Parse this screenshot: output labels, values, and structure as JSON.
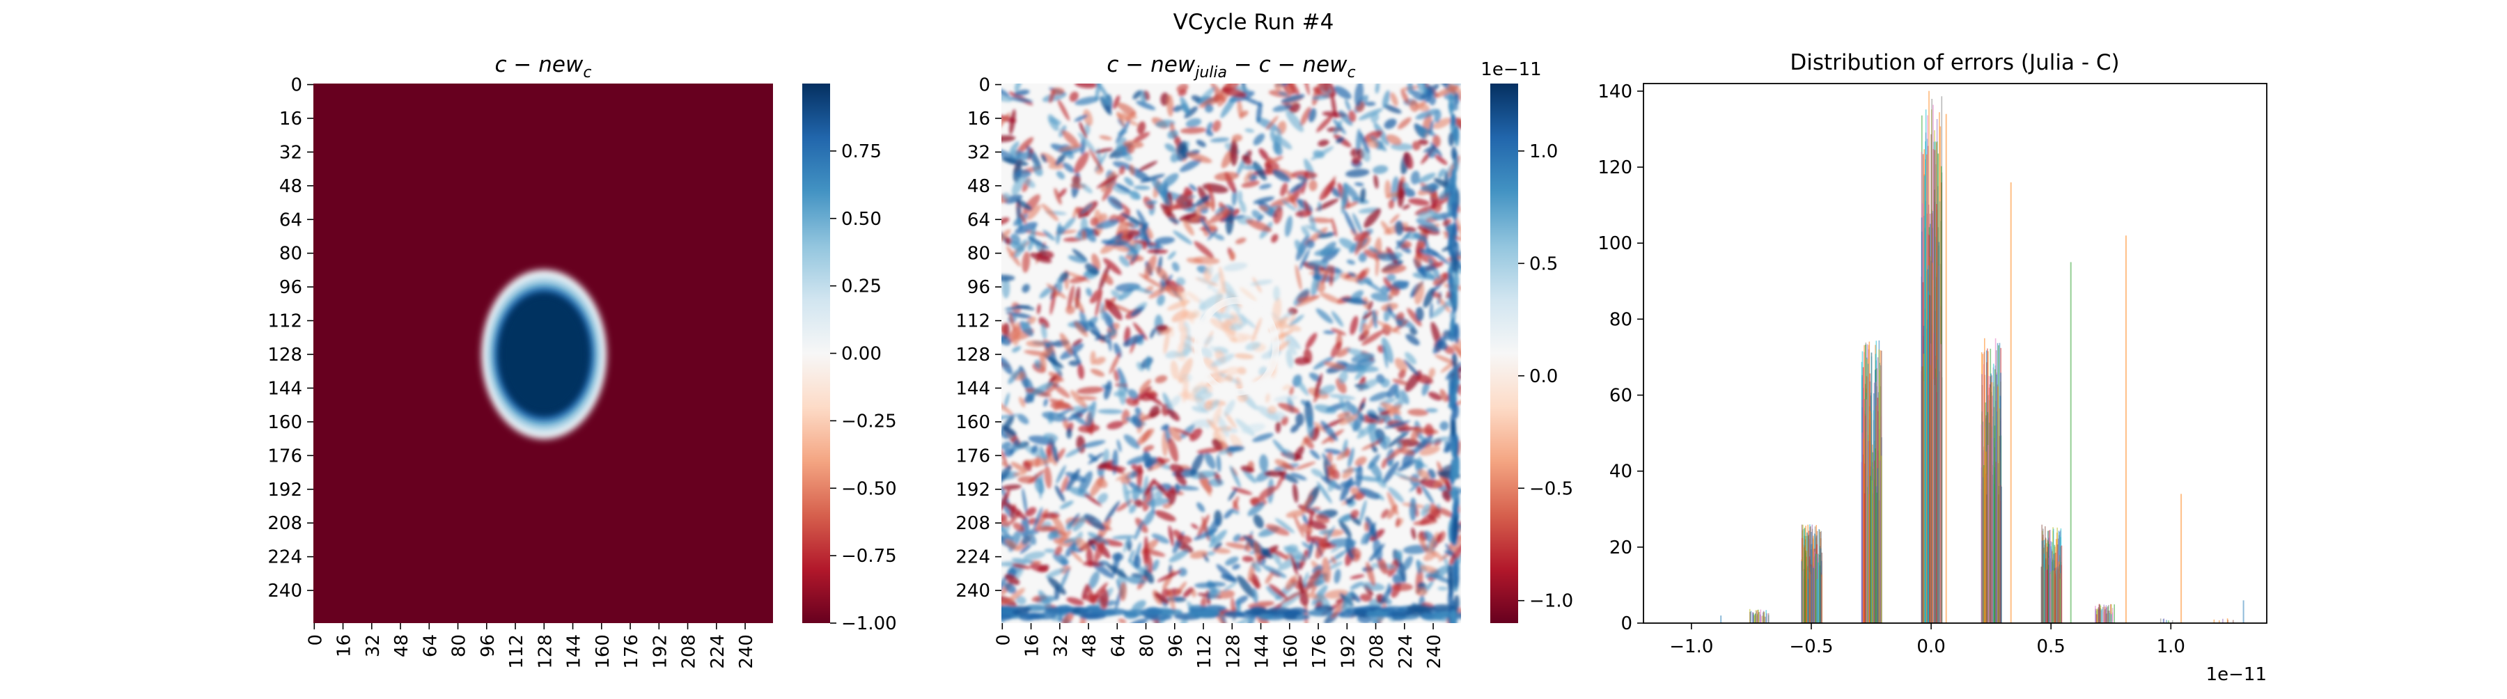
{
  "figure": {
    "suptitle": "VCycle Run #4"
  },
  "colors": {
    "rdbu": [
      "#67001f",
      "#b2182b",
      "#d6604d",
      "#f4a582",
      "#fddbc7",
      "#f7f7f7",
      "#d1e5f0",
      "#92c5de",
      "#4393c3",
      "#2166ac",
      "#053061"
    ],
    "hist_series": [
      "#1f77b4",
      "#ff7f0e",
      "#2ca02c",
      "#d62728",
      "#9467bd",
      "#8c564b",
      "#e377c2",
      "#7f7f7f",
      "#bcbd22",
      "#17becf"
    ]
  },
  "chart_data": [
    {
      "type": "heatmap",
      "title_base": "c − new",
      "title_sub": "c",
      "grid_size": 256,
      "x_ticks": [
        "0",
        "16",
        "32",
        "48",
        "64",
        "80",
        "96",
        "112",
        "128",
        "144",
        "160",
        "176",
        "192",
        "208",
        "224",
        "240"
      ],
      "y_ticks": [
        "0",
        "16",
        "32",
        "48",
        "64",
        "80",
        "96",
        "112",
        "128",
        "144",
        "160",
        "176",
        "192",
        "208",
        "224",
        "240"
      ],
      "background_value": -1.0,
      "blob": {
        "center_x": 128,
        "center_y": 128,
        "radius_x": 26,
        "radius_y": 30,
        "value": 1.0
      },
      "colorbar": {
        "vmin": -1.0,
        "vmax": 1.0,
        "ticks": [
          "0.75",
          "0.50",
          "0.25",
          "0.00",
          "−0.25",
          "−0.50",
          "−0.75",
          "−1.00"
        ],
        "tick_values": [
          0.75,
          0.5,
          0.25,
          0.0,
          -0.25,
          -0.5,
          -0.75,
          -1.0
        ]
      }
    },
    {
      "type": "heatmap",
      "title_parts": [
        "c − new",
        "julia",
        " − c − new",
        "c"
      ],
      "grid_size": 256,
      "x_ticks": [
        "0",
        "16",
        "32",
        "48",
        "64",
        "80",
        "96",
        "112",
        "128",
        "144",
        "160",
        "176",
        "192",
        "208",
        "224",
        "240"
      ],
      "y_ticks": [
        "0",
        "16",
        "32",
        "48",
        "64",
        "80",
        "96",
        "112",
        "128",
        "144",
        "160",
        "176",
        "192",
        "208",
        "224",
        "240"
      ],
      "colorbar": {
        "vmin": -1.1,
        "vmax": 1.3,
        "scale_label": "1e−11",
        "ticks": [
          "1.0",
          "0.5",
          "0.0",
          "−0.5",
          "−1.0"
        ],
        "tick_values": [
          1.0,
          0.5,
          0.0,
          -0.5,
          -1.0
        ]
      }
    },
    {
      "type": "bar",
      "title": "Distribution of errors (Julia - C)",
      "xlim": [
        -1.2,
        1.4
      ],
      "ylim": [
        0,
        142
      ],
      "x_scale_label": "1e−11",
      "x_ticks": [
        "−1.0",
        "−0.5",
        "0.0",
        "0.5",
        "1.0"
      ],
      "x_tick_values": [
        -1.0,
        -0.5,
        0.0,
        0.5,
        1.0
      ],
      "y_ticks": [
        "0",
        "20",
        "40",
        "60",
        "80",
        "100",
        "120",
        "140"
      ],
      "y_tick_values": [
        0,
        20,
        40,
        60,
        80,
        100,
        120,
        140
      ],
      "clusters": [
        {
          "center": -0.72,
          "height": 3
        },
        {
          "center": -0.5,
          "height": 20
        },
        {
          "center": -0.25,
          "height": 58
        },
        {
          "center": 0.0,
          "height": 108
        },
        {
          "center": 0.25,
          "height": 58
        },
        {
          "center": 0.5,
          "height": 20
        },
        {
          "center": 0.72,
          "height": 4
        },
        {
          "center": 0.98,
          "height": 1
        },
        {
          "center": 1.22,
          "height": 1
        }
      ],
      "spikes": [
        {
          "x": 0.06,
          "y": 134,
          "series": 1
        },
        {
          "x": 0.33,
          "y": 116,
          "series": 1
        },
        {
          "x": 0.81,
          "y": 102,
          "series": 1
        },
        {
          "x": 0.58,
          "y": 95,
          "series": 2
        },
        {
          "x": 1.04,
          "y": 34,
          "series": 1
        },
        {
          "x": 1.3,
          "y": 6,
          "series": 0
        },
        {
          "x": -0.88,
          "y": 2,
          "series": 0
        }
      ]
    }
  ]
}
